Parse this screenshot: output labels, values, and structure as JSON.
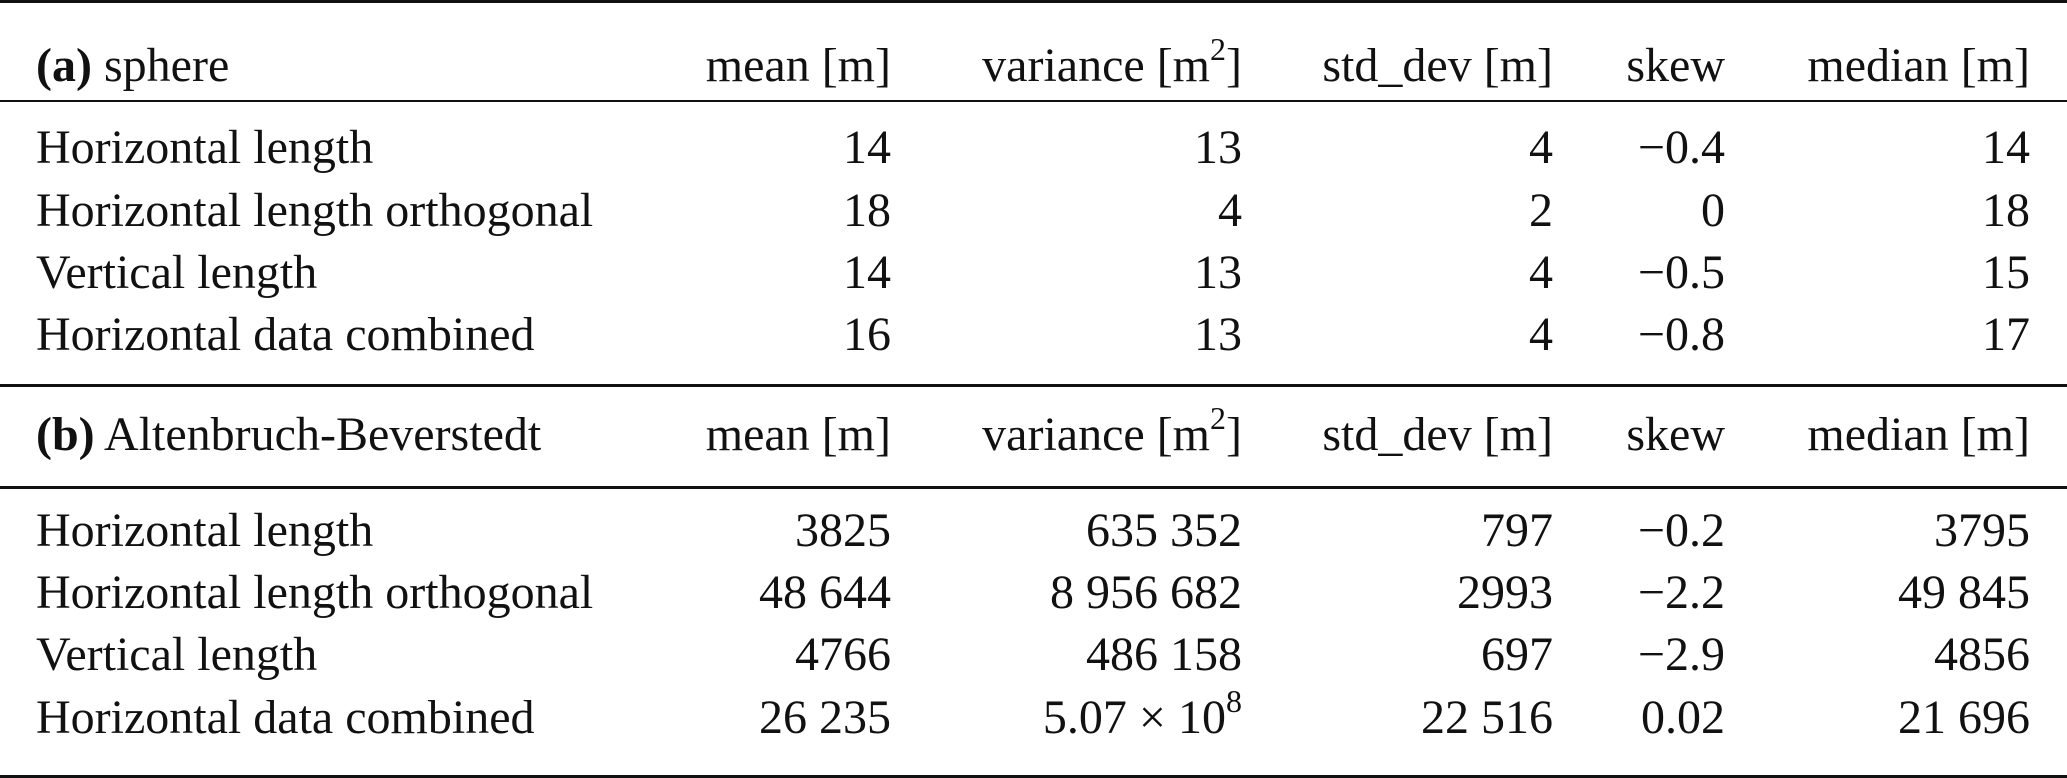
{
  "columns": [
    {
      "text": "mean [m]"
    },
    {
      "text": "variance [m",
      "sup": "2",
      "after": "]"
    },
    {
      "text": "std_dev [m]"
    },
    {
      "text": "skew"
    },
    {
      "text": "median [m]"
    }
  ],
  "panels": [
    {
      "tag": "(a)",
      "name": "sphere",
      "rows": [
        {
          "label": "Horizontal length",
          "values": [
            "14",
            "13",
            "4",
            "−0.4",
            "14"
          ]
        },
        {
          "label": "Horizontal length orthogonal",
          "values": [
            "18",
            "4",
            "2",
            "0",
            "18"
          ]
        },
        {
          "label": "Vertical length",
          "values": [
            "14",
            "13",
            "4",
            "−0.5",
            "15"
          ]
        },
        {
          "label": "Horizontal data combined",
          "values": [
            "16",
            "13",
            "4",
            "−0.8",
            "17"
          ]
        }
      ]
    },
    {
      "tag": "(b)",
      "name": "Altenbruch-Beverstedt",
      "rows": [
        {
          "label": "Horizontal length",
          "values": [
            "3825",
            "635 352",
            "797",
            "−0.2",
            "3795"
          ]
        },
        {
          "label": "Horizontal length orthogonal",
          "values": [
            "48 644",
            "8 956 682",
            "2993",
            "−2.2",
            "49 845"
          ]
        },
        {
          "label": "Vertical length",
          "values": [
            "4766",
            "486 158",
            "697",
            "−2.9",
            "4856"
          ]
        },
        {
          "label": "Horizontal data combined",
          "values": [
            "26 235",
            {
              "base": "5.07 × 10",
              "sup": "8"
            },
            "22 516",
            "0.02",
            "21 696"
          ]
        }
      ]
    }
  ]
}
